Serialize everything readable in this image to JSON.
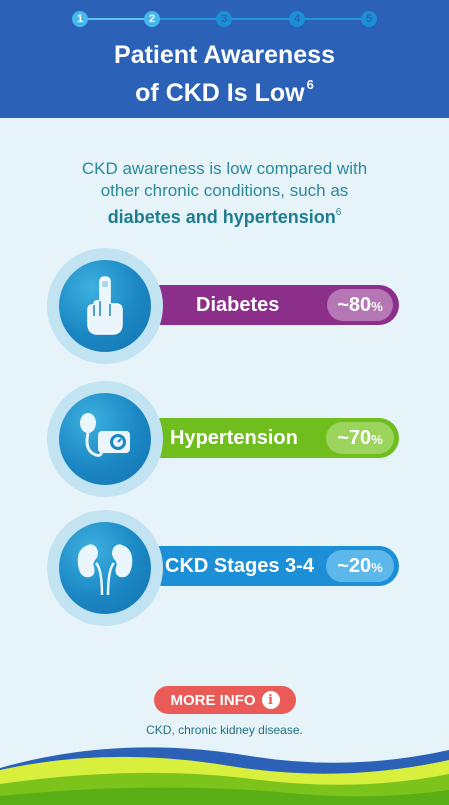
{
  "progress": {
    "steps": [
      "1",
      "2",
      "3",
      "4",
      "5"
    ],
    "current_step": 2
  },
  "header": {
    "title_line1": "Patient Awareness",
    "title_line2": "of CKD Is Low",
    "title_ref": "6"
  },
  "intro": {
    "line1": "CKD awareness is low compared with",
    "line2": "other chronic conditions, such as",
    "bold": "diabetes and hypertension",
    "ref": "6"
  },
  "conditions": [
    {
      "label": "Diabetes",
      "value": "~80",
      "unit": "%",
      "icon": "raised-finger-icon",
      "color": "#8b2f8b",
      "badge_color": "#b477b4"
    },
    {
      "label": "Hypertension",
      "value": "~70",
      "unit": "%",
      "icon": "blood-pressure-monitor-icon",
      "color": "#6fbe1e",
      "badge_color": "#9bd55e"
    },
    {
      "label": "CKD Stages 3-4",
      "value": "~20",
      "unit": "%",
      "icon": "kidneys-icon",
      "color": "#1d8fd6",
      "badge_color": "#5db7ea"
    }
  ],
  "more_info": {
    "label": "MORE INFO",
    "icon": "info-icon"
  },
  "footnote": "CKD, chronic kidney disease.",
  "colors": {
    "header": "#2b62b7",
    "background": "#e6f4f9",
    "button": "#ea5b57",
    "accent_text": "#2a8a9a"
  }
}
